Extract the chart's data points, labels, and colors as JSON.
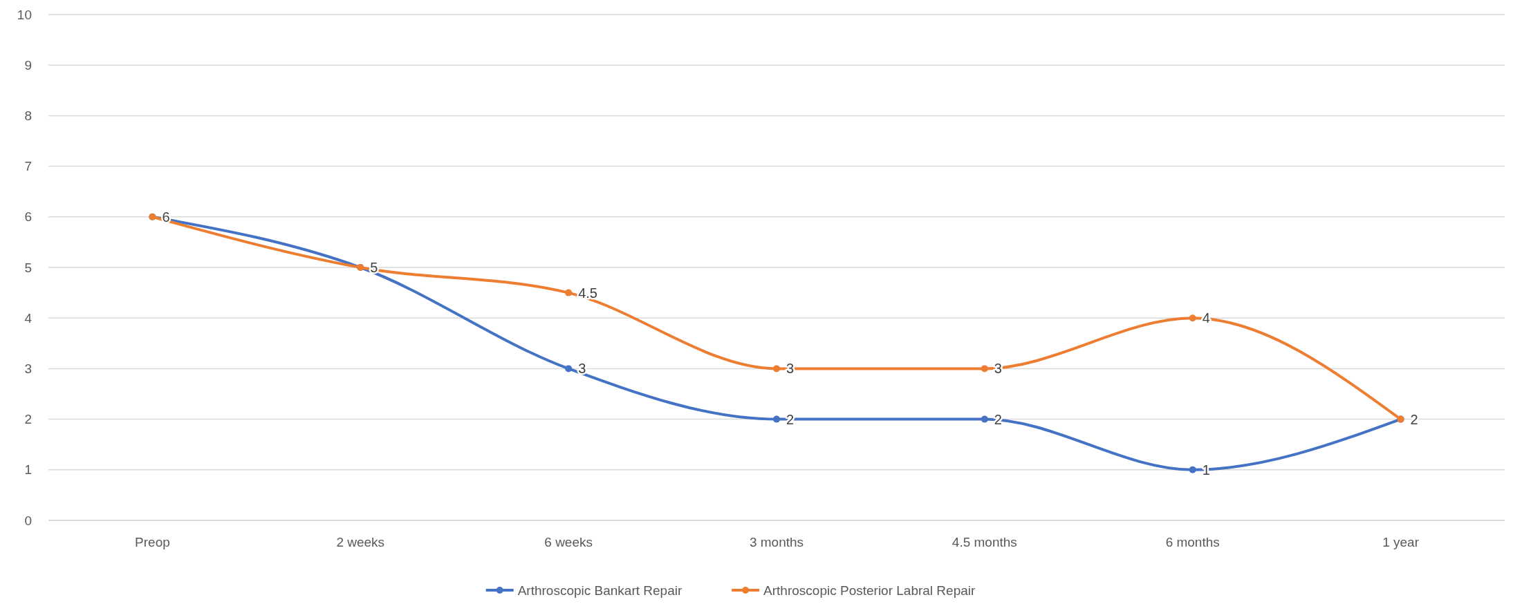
{
  "chart_data": {
    "type": "line",
    "categories": [
      "Preop",
      "2 weeks",
      "6 weeks",
      "3 months",
      "4.5 months",
      "6 months",
      "1 year"
    ],
    "series": [
      {
        "name": "Arthroscopic Bankart Repair",
        "color": "#4472c4",
        "values": [
          6,
          5,
          3,
          2,
          2,
          1,
          2
        ],
        "value_labels": [
          null,
          null,
          "3",
          "2",
          "2",
          "1",
          null
        ]
      },
      {
        "name": "Arthroscopic Posterior Labral Repair",
        "color": "#ed7d31",
        "values": [
          6,
          5,
          4.5,
          3,
          3,
          4,
          2
        ],
        "value_labels": [
          "6",
          "5",
          "4.5",
          "3",
          "3",
          "4",
          "2"
        ]
      }
    ],
    "ylim": [
      0,
      10
    ],
    "yticks": [
      0,
      1,
      2,
      3,
      4,
      5,
      6,
      7,
      8,
      9,
      10
    ],
    "grid": "y",
    "legend": "bottom",
    "marker": "circle",
    "line_style": "solid"
  }
}
